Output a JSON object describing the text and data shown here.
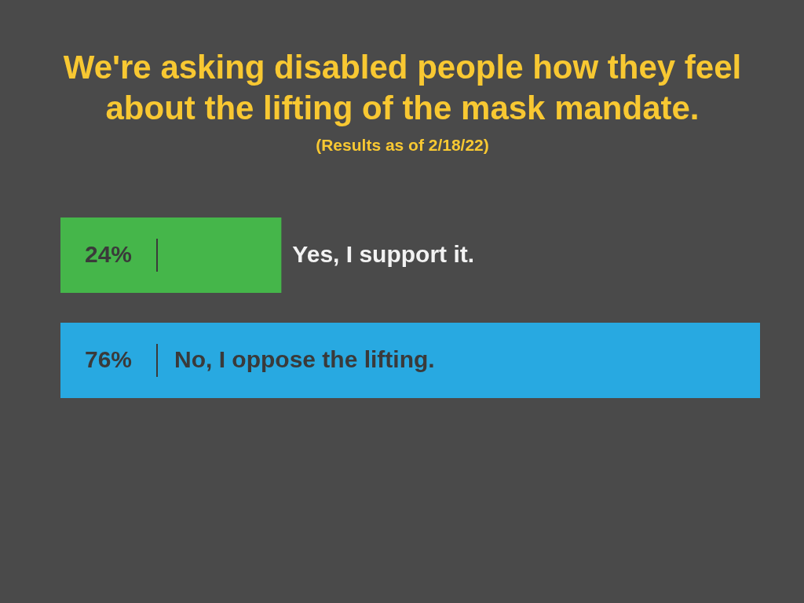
{
  "chart_data": {
    "type": "bar",
    "orientation": "horizontal",
    "title": "We're asking disabled people how they feel about the lifting of the mask mandate.",
    "subtitle": "(Results as of 2/18/22)",
    "categories": [
      "Yes, I support it.",
      "No, I oppose the lifting."
    ],
    "values": [
      24,
      76
    ],
    "colors": [
      "#45b64a",
      "#28a9e1"
    ],
    "value_labels": [
      "24%",
      "76%"
    ]
  }
}
